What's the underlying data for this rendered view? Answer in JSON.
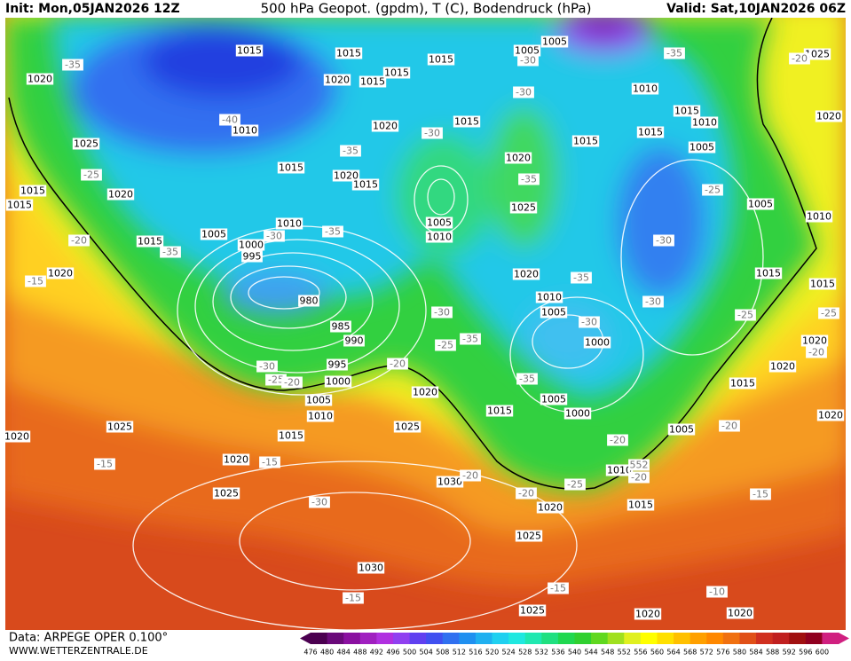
{
  "header": {
    "init": "Init: Mon,05JAN2026 12Z",
    "title": "500 hPa Geopot. (gpdm), T (C), Bodendruck (hPa)",
    "valid": "Valid: Sat,10JAN2026 06Z"
  },
  "footer": {
    "data": "Data: ARPEGE OPER 0.100°",
    "site": "WWW.WETTERZENTRALE.DE"
  },
  "colorbar": {
    "values": [
      476,
      480,
      484,
      488,
      492,
      496,
      500,
      504,
      508,
      512,
      516,
      520,
      524,
      528,
      532,
      536,
      540,
      544,
      548,
      552,
      556,
      560,
      564,
      568,
      572,
      576,
      580,
      584,
      588,
      592,
      596,
      600
    ],
    "colors": [
      "#4b0050",
      "#6a0a7a",
      "#8a10a0",
      "#a020c0",
      "#b030e0",
      "#9040f0",
      "#6040f0",
      "#4050f0",
      "#3070f0",
      "#2090f0",
      "#20b0f0",
      "#20d0f0",
      "#20e8e0",
      "#20e8b0",
      "#20e080",
      "#20d850",
      "#30d030",
      "#60d820",
      "#a0e020",
      "#e0f020",
      "#ffff00",
      "#ffe000",
      "#ffc000",
      "#ffa000",
      "#ff8800",
      "#f07010",
      "#e05018",
      "#d03020",
      "#c02020",
      "#a01010",
      "#900020",
      "#d02080"
    ]
  },
  "pressure_labels": [
    "1015",
    "1015",
    "1015",
    "1015",
    "1005",
    "1005",
    "1025",
    "1020",
    "1020",
    "1015",
    "1010",
    "1015",
    "1010",
    "1020",
    "1010",
    "1020",
    "1015",
    "1015",
    "1025",
    "1015",
    "1005",
    "1020",
    "1015",
    "1020",
    "1015",
    "1015",
    "1020",
    "1015",
    "1025",
    "1005",
    "1010",
    "1010",
    "1005",
    "1010",
    "1005",
    "1000",
    "995",
    "1015",
    "1020",
    "1020",
    "1015",
    "1015",
    "980",
    "1010",
    "1005",
    "985",
    "990",
    "1000",
    "1020",
    "995",
    "1020",
    "1000",
    "1015",
    "1020",
    "1005",
    "1005",
    "1010",
    "1015",
    "1000",
    "1020",
    "1025",
    "1025",
    "1005",
    "1020",
    "1015",
    "1020",
    "1010",
    "1030",
    "1025",
    "1020",
    "1015",
    "1025",
    "1030",
    "1025",
    "1020",
    "1020"
  ],
  "temperature_labels": [
    "-35",
    "-30",
    "-35",
    "-20",
    "-30",
    "-40",
    "-30",
    "-35",
    "-25",
    "-35",
    "-25",
    "-30",
    "-35",
    "-20",
    "-35",
    "-30",
    "-15",
    "-35",
    "-30",
    "-30",
    "-25",
    "-30",
    "-25",
    "-35",
    "-25",
    "-20",
    "-20",
    "-30",
    "-25",
    "-20",
    "-35",
    "-20",
    "-20",
    "-15",
    "-15",
    "-20",
    "-20",
    "-25",
    "-20",
    "-30",
    "-15",
    "-15",
    "-15",
    "-10",
    "552"
  ]
}
